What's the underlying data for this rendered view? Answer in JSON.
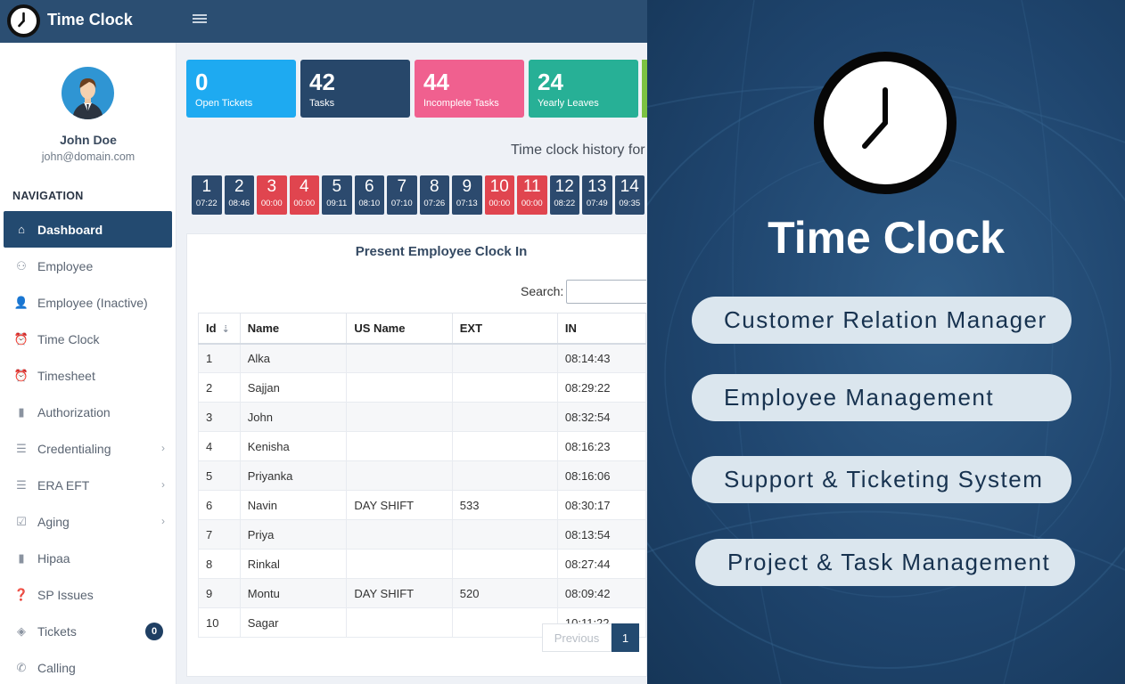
{
  "app": {
    "brand": "Time Clock"
  },
  "user": {
    "name": "John Doe",
    "email": "john@domain.com"
  },
  "nav": {
    "heading": "NAVIGATION",
    "items": [
      {
        "label": "Dashboard",
        "icon": "home-icon",
        "active": true
      },
      {
        "label": "Employee",
        "icon": "user-icon"
      },
      {
        "label": "Employee (Inactive)",
        "icon": "user-times-icon"
      },
      {
        "label": "Time Clock",
        "icon": "alarm-clock-icon"
      },
      {
        "label": "Timesheet",
        "icon": "alarm-clock-icon"
      },
      {
        "label": "Authorization",
        "icon": "file-icon"
      },
      {
        "label": "Credentialing",
        "icon": "list-icon",
        "chevron": true
      },
      {
        "label": "ERA EFT",
        "icon": "list-icon",
        "chevron": true
      },
      {
        "label": "Aging",
        "icon": "check-square-icon",
        "chevron": true
      },
      {
        "label": "Hipaa",
        "icon": "file-icon"
      },
      {
        "label": "SP Issues",
        "icon": "question-circle-icon"
      },
      {
        "label": "Tickets",
        "icon": "ticket-icon",
        "badge": "0"
      },
      {
        "label": "Calling",
        "icon": "phone-icon"
      }
    ]
  },
  "stats": [
    {
      "value": "0",
      "label": "Open Tickets",
      "color": "#1eaaf1"
    },
    {
      "value": "42",
      "label": "Tasks",
      "color": "#27476a"
    },
    {
      "value": "44",
      "label": "Incomplete Tasks",
      "color": "#f0608f"
    },
    {
      "value": "24",
      "label": "Yearly Leaves",
      "color": "#27b096"
    }
  ],
  "history": {
    "title": "Time clock history for",
    "days": [
      {
        "day": "1",
        "time": "07:22",
        "late": false
      },
      {
        "day": "2",
        "time": "08:46",
        "late": false
      },
      {
        "day": "3",
        "time": "00:00",
        "late": true
      },
      {
        "day": "4",
        "time": "00:00",
        "late": true
      },
      {
        "day": "5",
        "time": "09:11",
        "late": false
      },
      {
        "day": "6",
        "time": "08:10",
        "late": false
      },
      {
        "day": "7",
        "time": "07:10",
        "late": false
      },
      {
        "day": "8",
        "time": "07:26",
        "late": false
      },
      {
        "day": "9",
        "time": "07:13",
        "late": false
      },
      {
        "day": "10",
        "time": "00:00",
        "late": true
      },
      {
        "day": "11",
        "time": "00:00",
        "late": true
      },
      {
        "day": "12",
        "time": "08:22",
        "late": false
      },
      {
        "day": "13",
        "time": "07:49",
        "late": false
      },
      {
        "day": "14",
        "time": "09:35",
        "late": false
      }
    ]
  },
  "table": {
    "title": "Present Employee Clock In",
    "search_label": "Search:",
    "search_value": "",
    "columns": [
      "Id",
      "Name",
      "US Name",
      "EXT",
      "IN"
    ],
    "rows": [
      [
        "1",
        "Alka",
        "",
        "",
        "08:14:43"
      ],
      [
        "2",
        "Sajjan",
        "",
        "",
        "08:29:22"
      ],
      [
        "3",
        "John",
        "",
        "",
        "08:32:54"
      ],
      [
        "4",
        "Kenisha",
        "",
        "",
        "08:16:23"
      ],
      [
        "5",
        "Priyanka",
        "",
        "",
        "08:16:06"
      ],
      [
        "6",
        "Navin",
        "DAY SHIFT",
        "533",
        "08:30:17"
      ],
      [
        "7",
        "Priya",
        "",
        "",
        "08:13:54"
      ],
      [
        "8",
        "Rinkal",
        "",
        "",
        "08:27:44"
      ],
      [
        "9",
        "Montu",
        "DAY SHIFT",
        "520",
        "08:09:42"
      ],
      [
        "10",
        "Sagar",
        "",
        "",
        "10:11:22"
      ]
    ],
    "pagination": {
      "previous": "Previous",
      "current": "1"
    }
  },
  "promo": {
    "title": "Time Clock",
    "features": [
      "Customer Relation Manager",
      "Employee Management",
      "Support & Ticketing System",
      "Project & Task Management"
    ]
  }
}
